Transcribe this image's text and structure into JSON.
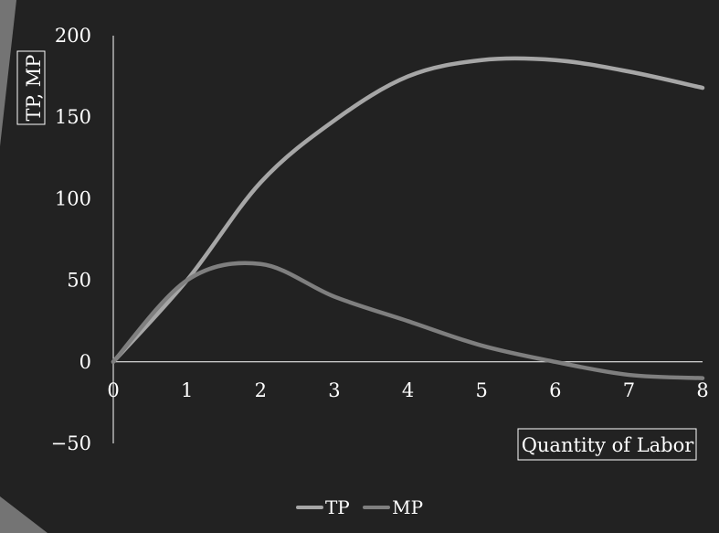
{
  "chart_data": {
    "type": "line",
    "title": "",
    "xlabel": "Quantity of Labor",
    "ylabel": "TP, MP",
    "x": [
      0,
      1,
      2,
      3,
      4,
      5,
      6,
      7,
      8
    ],
    "xlim": [
      0,
      8
    ],
    "ylim": [
      -50,
      200
    ],
    "yticks": [
      -50,
      0,
      50,
      100,
      150,
      200
    ],
    "xticks": [
      0,
      1,
      2,
      3,
      4,
      5,
      6,
      7,
      8
    ],
    "grid": false,
    "legend_position": "bottom",
    "series": [
      {
        "name": "TP",
        "color": "#a6a6a6",
        "values": [
          0,
          50,
          110,
          148,
          175,
          185,
          185,
          178,
          168
        ]
      },
      {
        "name": "MP",
        "color": "#7f7f7f",
        "values": [
          0,
          50,
          60,
          40,
          25,
          10,
          0,
          -8,
          -10
        ]
      }
    ]
  }
}
